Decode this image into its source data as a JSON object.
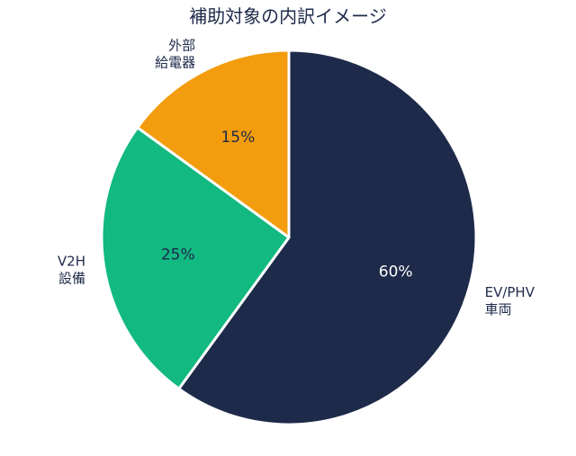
{
  "chart_data": {
    "type": "pie",
    "title": "補助対象の内訳イメージ",
    "unit": "%",
    "slices": [
      {
        "label_lines": [
          "EV/PHV",
          "車両"
        ],
        "value": 60,
        "percent_label": "60%",
        "color": "#1e2a4a",
        "text_color": "#ffffff"
      },
      {
        "label_lines": [
          "V2H",
          "設備"
        ],
        "value": 25,
        "percent_label": "25%",
        "color": "#12b981",
        "text_color": "#1e2a4a"
      },
      {
        "label_lines": [
          "外部",
          "給電器"
        ],
        "value": 15,
        "percent_label": "15%",
        "color": "#f39c0e",
        "text_color": "#1e2a4a"
      }
    ],
    "start_angle": "12 o'clock",
    "direction": "clockwise",
    "legend": "none"
  }
}
